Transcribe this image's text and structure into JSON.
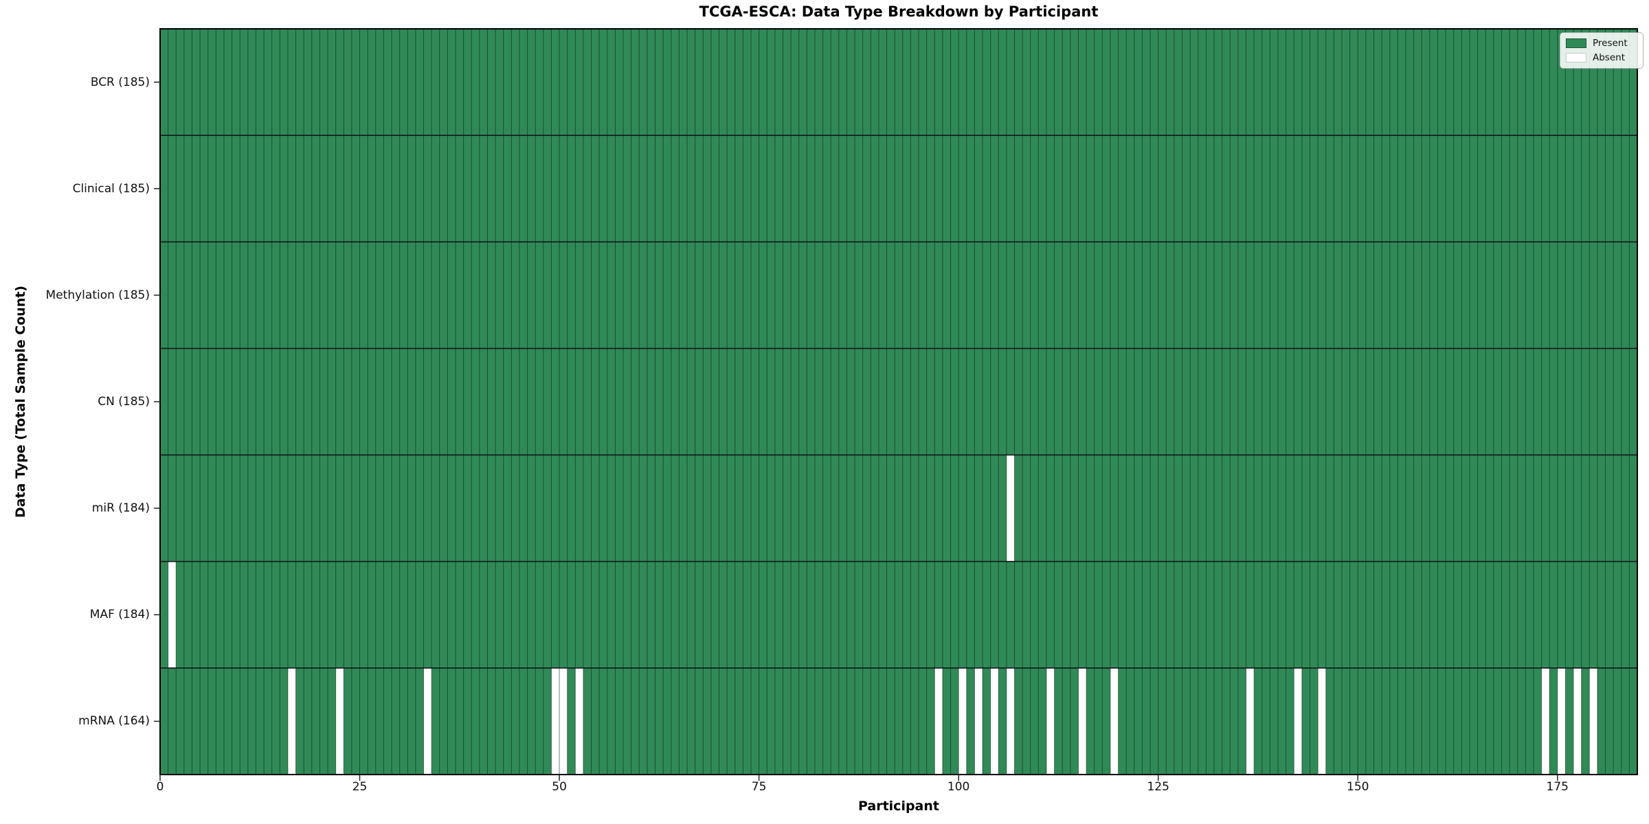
{
  "title": "TCGA-ESCA: Data Type Breakdown by Participant",
  "colors": {
    "present": "#308a58",
    "absent": "#ffffff",
    "cell_edge": "rgba(10,30,20,0.55)",
    "row_separator": "#161616",
    "plot_border": "#000000",
    "tick": "#222222"
  },
  "chart_data": {
    "type": "heatmap",
    "title": "TCGA-ESCA: Data Type Breakdown by Participant",
    "xlabel": "Participant",
    "ylabel": "Data Type (Total Sample Count)",
    "n_participants": 185,
    "x_range": [
      0,
      185
    ],
    "x_ticks": [
      0,
      25,
      50,
      75,
      100,
      125,
      150,
      175
    ],
    "grid": "cell-edges",
    "legend_position": "upper-right",
    "rows": [
      {
        "label": "BCR (185)",
        "data_type": "BCR",
        "present_count": 185,
        "absent_participants": []
      },
      {
        "label": "Clinical (185)",
        "data_type": "Clinical",
        "present_count": 185,
        "absent_participants": []
      },
      {
        "label": "Methylation (185)",
        "data_type": "Methylation",
        "present_count": 185,
        "absent_participants": []
      },
      {
        "label": "CN (185)",
        "data_type": "CN",
        "present_count": 185,
        "absent_participants": []
      },
      {
        "label": "miR (184)",
        "data_type": "miR",
        "present_count": 184,
        "absent_participants": [
          106
        ]
      },
      {
        "label": "MAF (184)",
        "data_type": "MAF",
        "present_count": 184,
        "absent_participants": [
          1
        ]
      },
      {
        "label": "mRNA (164)",
        "data_type": "mRNA",
        "present_count": 164,
        "absent_participants": [
          16,
          22,
          33,
          49,
          50,
          52,
          97,
          100,
          102,
          104,
          106,
          111,
          115,
          119,
          136,
          142,
          145,
          173,
          175,
          177,
          179
        ]
      }
    ],
    "legend": [
      {
        "label": "Present",
        "color": "#308a58"
      },
      {
        "label": "Absent",
        "color": "#ffffff"
      }
    ]
  }
}
